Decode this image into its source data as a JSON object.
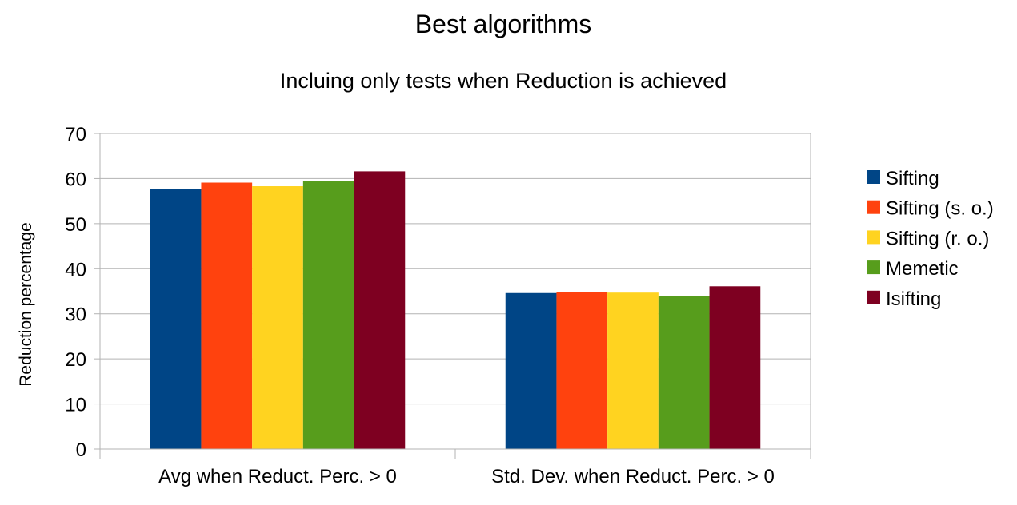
{
  "chart_data": {
    "type": "bar",
    "title": "Best algorithms",
    "subtitle": "Incluing only tests when Reduction is achieved",
    "xlabel": "",
    "ylabel": "Reduction percentage",
    "ylim": [
      0,
      70
    ],
    "yticks": [
      0,
      10,
      20,
      30,
      40,
      50,
      60,
      70
    ],
    "grid": true,
    "legend_position": "right",
    "categories": [
      "Avg when Reduct. Perc. > 0",
      "Std. Dev. when Reduct. Perc. > 0"
    ],
    "series": [
      {
        "name": "Sifting",
        "color": "#004586",
        "values": [
          57.7,
          34.6
        ]
      },
      {
        "name": "Sifting (s. o.)",
        "color": "#ff420e",
        "values": [
          59.1,
          34.8
        ]
      },
      {
        "name": "Sifting (r. o.)",
        "color": "#ffd320",
        "values": [
          58.3,
          34.7
        ]
      },
      {
        "name": "Memetic",
        "color": "#579d1c",
        "values": [
          59.4,
          33.9
        ]
      },
      {
        "name": "Isifting",
        "color": "#7e0021",
        "values": [
          61.6,
          36.1
        ]
      }
    ]
  }
}
